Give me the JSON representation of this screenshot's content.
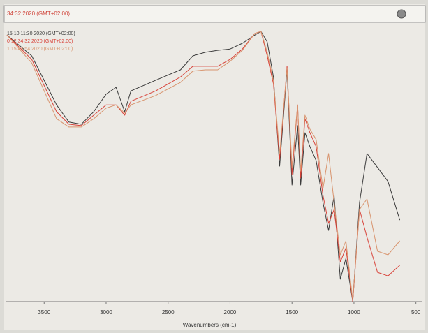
{
  "window_title": "34:32 2020 (GMT+02:00)",
  "chart_data": {
    "type": "line",
    "x_label": "Wavenumbers (cm-1)",
    "x": [
      3800,
      3600,
      3400,
      3300,
      3200,
      3100,
      3000,
      2920,
      2850,
      2800,
      2600,
      2400,
      2300,
      2200,
      2100,
      2000,
      1900,
      1800,
      1750,
      1700,
      1650,
      1600,
      1540,
      1500,
      1455,
      1430,
      1395,
      1355,
      1305,
      1250,
      1205,
      1160,
      1110,
      1065,
      1010,
      955,
      895,
      810,
      725,
      630
    ],
    "xlim": [
      3800,
      470
    ],
    "xticks": [
      3500,
      3000,
      2500,
      2000,
      1500,
      1000,
      500
    ],
    "ylim": [
      0,
      100
    ],
    "series": [
      {
        "name": "15 10:11:30 2020 (GMT+02:00)",
        "color": "#3c3c3c",
        "values": [
          97.4,
          89.8,
          71.9,
          65.6,
          64.8,
          69.4,
          75.8,
          78.3,
          69.4,
          77.0,
          80.9,
          84.7,
          89.8,
          91.1,
          91.8,
          92.3,
          94.4,
          97.4,
          98.7,
          94.9,
          82.1,
          49.5,
          84.7,
          42.6,
          64.3,
          42.6,
          61.7,
          56.6,
          51.5,
          36.2,
          26.0,
          38.8,
          8.2,
          15.8,
          0.0,
          36.2,
          54.1,
          49.0,
          43.9,
          29.8
        ]
      },
      {
        "name": "0 12:34:32 2020 (GMT+02:00)",
        "color": "#d8433a",
        "values": [
          97.4,
          88.5,
          69.4,
          64.8,
          64.3,
          68.1,
          71.9,
          71.9,
          68.1,
          73.2,
          77.0,
          82.1,
          86.0,
          86.0,
          86.0,
          88.5,
          92.3,
          98.0,
          98.7,
          89.8,
          79.6,
          52.0,
          86.0,
          46.4,
          71.9,
          45.2,
          66.8,
          61.7,
          56.6,
          38.8,
          28.6,
          33.7,
          14.5,
          19.6,
          0.0,
          33.7,
          23.5,
          10.7,
          9.4,
          13.3
        ]
      },
      {
        "name": "1 15:43:54 2020 (GMT+02:00)",
        "color": "#d8946e",
        "values": [
          97.4,
          87.2,
          66.8,
          63.8,
          63.8,
          66.8,
          70.7,
          71.9,
          68.9,
          71.9,
          75.3,
          80.1,
          84.2,
          84.7,
          84.7,
          87.8,
          91.8,
          98.0,
          98.7,
          91.1,
          80.9,
          54.1,
          85.2,
          49.0,
          71.9,
          47.7,
          68.1,
          63.0,
          59.2,
          41.3,
          54.1,
          36.2,
          17.1,
          22.2,
          0.5,
          33.7,
          37.5,
          18.4,
          17.1,
          22.2
        ]
      }
    ]
  }
}
